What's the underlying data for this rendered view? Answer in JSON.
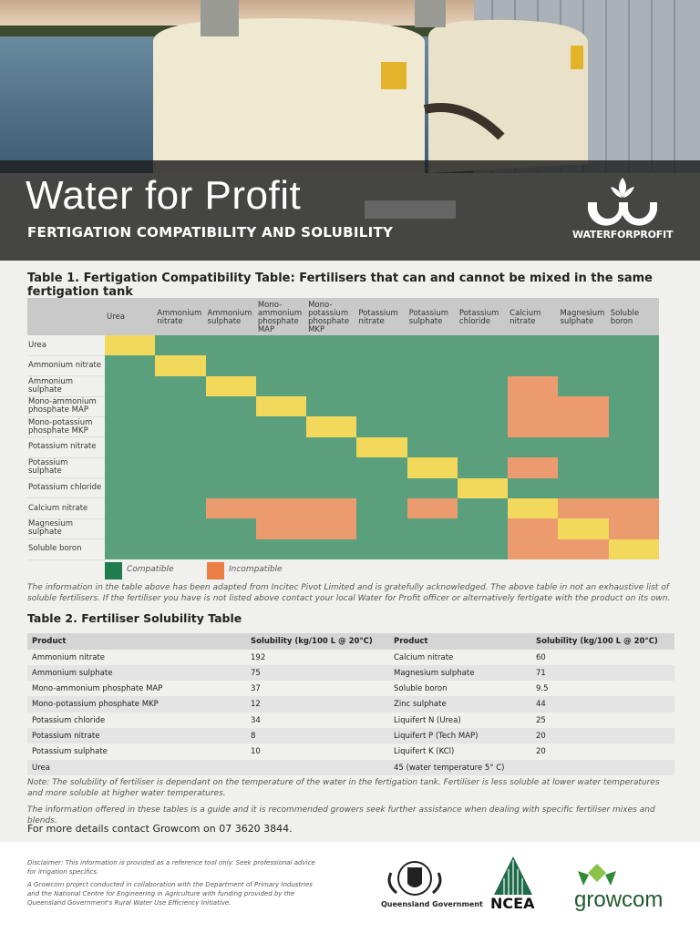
{
  "header": {
    "title": "Water for Profit",
    "subtitle": "FERTIGATION COMPATIBILITY AND SOLUBILITY",
    "logo_text": "WATERFORPROFIT"
  },
  "table1": {
    "title": "Table 1. Fertigation Compatibility Table: Fertilisers that can and cannot be mixed in the same fertigation tank",
    "columns": [
      "Urea",
      "Ammonium nitrate",
      "Ammonium sulphate",
      "Mono-ammonium phosphate MAP",
      "Mono-potassium phosphate MKP",
      "Potassium nitrate",
      "Potassium sulphate",
      "Potassium chloride",
      "Calcium nitrate",
      "Magnesium sulphate",
      "Soluble boron"
    ],
    "rows": [
      "Urea",
      "Ammonium nitrate",
      "Ammonium sulphate",
      "Mono-ammonium phosphate MAP",
      "Mono-potassium phosphate MKP",
      "Potassium nitrate",
      "Potassium sulphate",
      "Potassium chloride",
      "Calcium nitrate",
      "Magnesium sulphate",
      "Soluble boron"
    ],
    "legend": [
      "Compatible",
      "Incompatible"
    ],
    "incompatible_pairs": [
      [
        2,
        8
      ],
      [
        3,
        8
      ],
      [
        3,
        9
      ],
      [
        4,
        8
      ],
      [
        4,
        9
      ],
      [
        6,
        8
      ],
      [
        8,
        9
      ],
      [
        8,
        10
      ],
      [
        9,
        10
      ]
    ],
    "note": "The information in the table above has been adapted from Incitec Pivot Limited and is gratefully acknowledged. The above table in not an exhaustive list of soluble fertilisers. If the fertiliser you have is not listed above contact your local Water for Profit officer or alternatively fertigate with the product on its own."
  },
  "table2": {
    "title": "Table 2. Fertiliser Solubility Table",
    "header": [
      "Product",
      "Solubility (kg/100 L @ 20°C)",
      "Product",
      "Solubility (kg/100 L @ 20°C)"
    ],
    "rows": [
      [
        "Ammonium nitrate",
        192,
        "Calcium nitrate",
        60
      ],
      [
        "Ammonium sulphate",
        75,
        "Magnesium sulphate",
        71
      ],
      [
        "Mono-ammonium phosphate MAP",
        37,
        "Soluble boron",
        9.5
      ],
      [
        "Mono-potassium phosphate MKP",
        12,
        "Zinc sulphate",
        44
      ],
      [
        "Potassium chloride",
        34,
        "Liquifert N (Urea)",
        25
      ],
      [
        "Potassium nitrate",
        8,
        "Liquifert P (Tech MAP)",
        20
      ],
      [
        "Potassium sulphate",
        10,
        "Liquifert K (KCl)",
        20
      ],
      [
        "Urea",
        "45 (water temperature 5° C)"
      ]
    ],
    "notes": [
      "Note: The solubility of fertiliser is dependant on the temperature of the water in the fertigation tank. Fertiliser is less soluble at lower water temperatures and more soluble at higher water temperatures.",
      "The information offered in these tables is a guide and it is recommended growers seek further assistance when dealing with specific fertiliser mixes and blends."
    ],
    "contact": "For more details contact Growcom on 07 3620 3844."
  },
  "footer": {
    "disclaimer": "Disclaimer: This information is provided as a reference tool only. Seek professional advice for irrigation specifics.",
    "credit": "A Growcom project conducted in collaboration with the Department of Primary Industries and the National Centre for Engineering in Agriculture with funding provided by the Queensland Government's Rural Water Use Efficiency Initiative.",
    "logos": [
      "Queensland Government",
      "NCEA",
      "growcom"
    ]
  }
}
